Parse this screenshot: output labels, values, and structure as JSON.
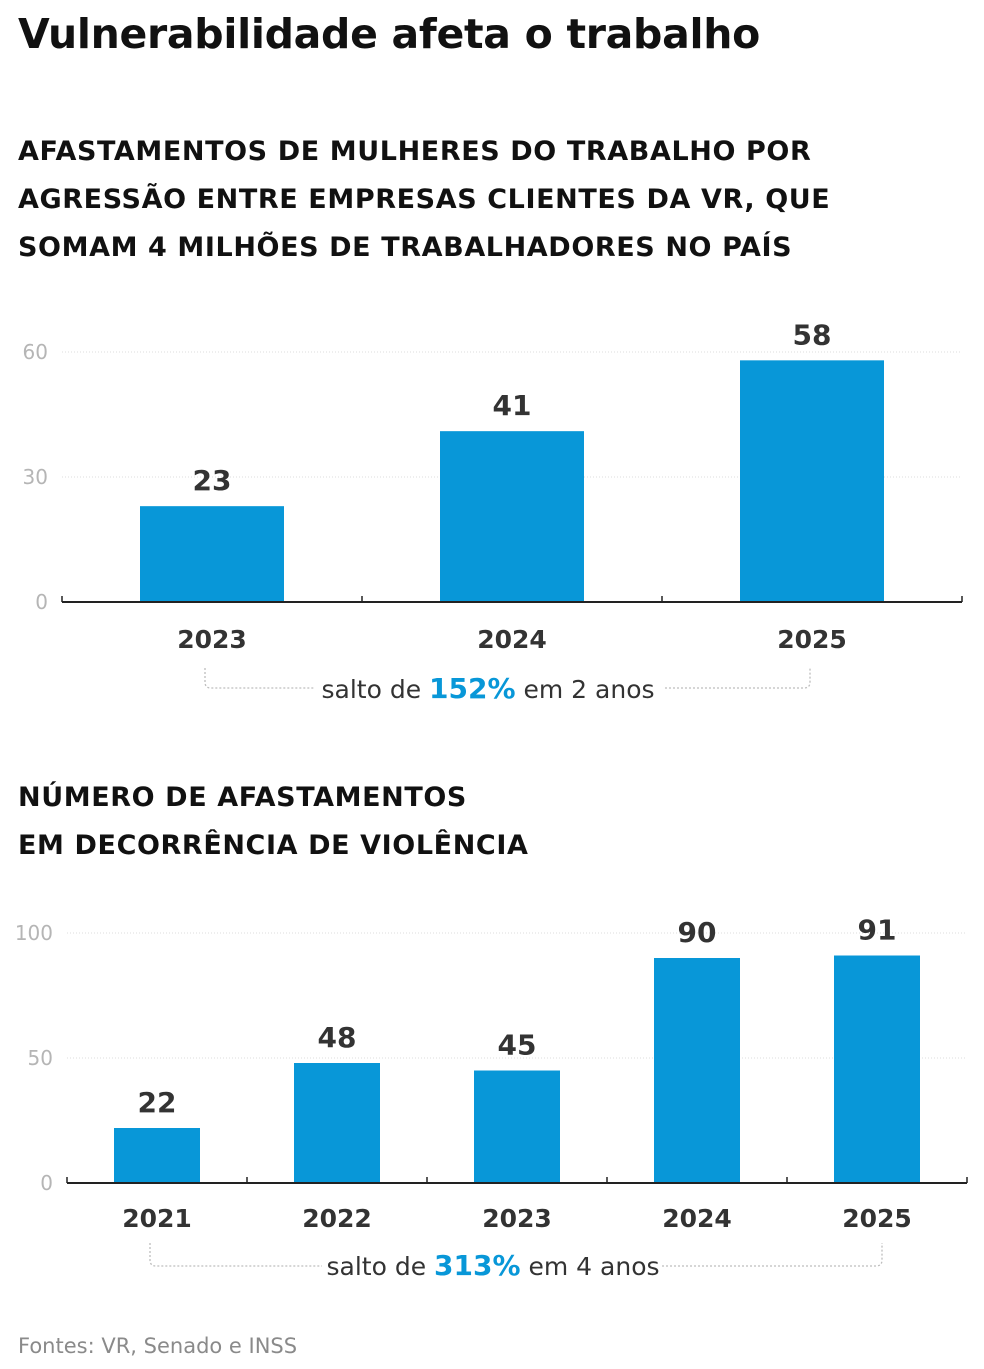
{
  "title": "Vulnerabilidade afeta o trabalho",
  "source": "Fontes: VR, Senado e INSS",
  "colors": {
    "bar": "#0897d8",
    "highlight": "#0897d8",
    "text": "#333333",
    "axis_tick": "#b5b5b5"
  },
  "chart_data": [
    {
      "type": "bar",
      "title": "AFASTAMENTOS DE MULHERES DO TRABALHO POR AGRESSÃO ENTRE EMPRESAS CLIENTES DA VR, QUE SOMAM 4 MILHÕES DE TRABALHADORES NO PAÍS",
      "title_lines": [
        "AFASTAMENTOS DE MULHERES DO TRABALHO POR",
        "AGRESSÃO ENTRE EMPRESAS CLIENTES DA VR, QUE",
        "SOMAM 4 MILHÕES DE TRABALHADORES NO PAÍS"
      ],
      "categories": [
        "2023",
        "2024",
        "2025"
      ],
      "values": [
        23,
        41,
        58
      ],
      "yticks": [
        0,
        30,
        60
      ],
      "ylim": [
        0,
        60
      ],
      "grid": true,
      "xlabel": "",
      "ylabel": "",
      "annotation": {
        "prefix": "salto de ",
        "highlight": "152%",
        "suffix": " em 2 anos"
      }
    },
    {
      "type": "bar",
      "title": "NÚMERO DE AFASTAMENTOS EM DECORRÊNCIA DE VIOLÊNCIA",
      "title_lines": [
        "NÚMERO DE AFASTAMENTOS",
        "EM DECORRÊNCIA DE VIOLÊNCIA"
      ],
      "categories": [
        "2021",
        "2022",
        "2023",
        "2024",
        "2025"
      ],
      "values": [
        22,
        48,
        45,
        90,
        91
      ],
      "yticks": [
        0,
        50,
        100
      ],
      "ylim": [
        0,
        100
      ],
      "grid": true,
      "xlabel": "",
      "ylabel": "",
      "annotation": {
        "prefix": "salto de ",
        "highlight": "313%",
        "suffix": " em 4 anos"
      }
    }
  ]
}
